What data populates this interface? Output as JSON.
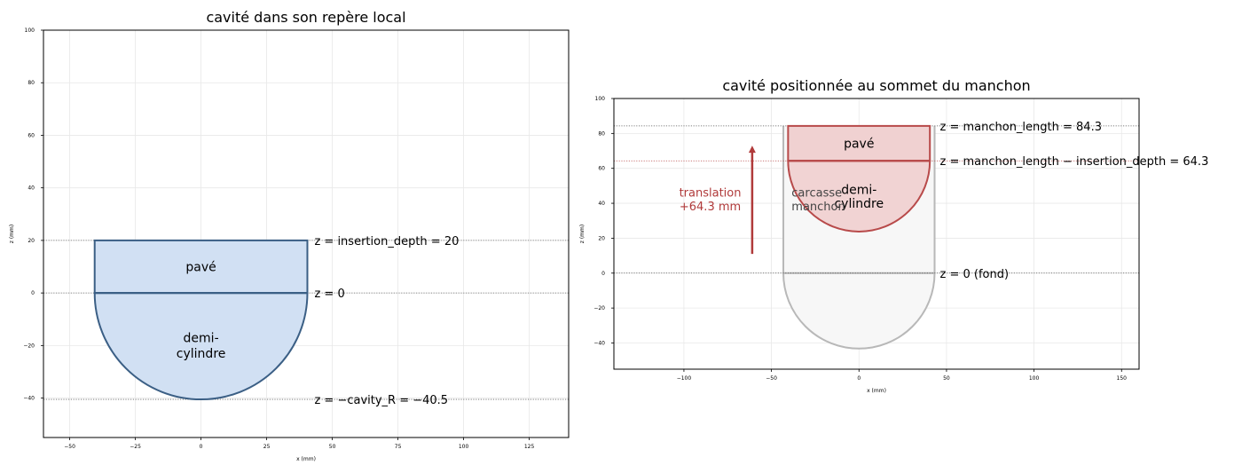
{
  "left": {
    "title": "cavité dans son repère local",
    "xlabel": "x (mm)",
    "ylabel": "z (mm)",
    "xlim": [
      -60,
      140
    ],
    "ylim": [
      -55,
      100
    ],
    "xticks": [
      -50,
      -25,
      0,
      25,
      50,
      75,
      100,
      125
    ],
    "yticks": [
      -40,
      -20,
      0,
      20,
      40,
      60,
      80,
      100
    ],
    "cavity": {
      "R": 40.5,
      "insertion_depth": 20,
      "fill": "#d1e0f3",
      "stroke": "#3b5f85"
    },
    "labels": {
      "pave": "pavé",
      "demi_1": "demi-",
      "demi_2": "cylindre"
    },
    "hlines": [
      {
        "z": 20,
        "text": "z = insertion_depth = 20"
      },
      {
        "z": 0,
        "text": "z = 0"
      },
      {
        "z": -40.5,
        "text": "z = −cavity_R = −40.5"
      }
    ]
  },
  "right": {
    "title": "cavité positionnée au sommet du manchon",
    "xlabel": "x (mm)",
    "ylabel": "z (mm)",
    "xlim": [
      -140,
      160
    ],
    "ylim": [
      -55,
      100
    ],
    "xticks": [
      -100,
      -50,
      0,
      50,
      100,
      150
    ],
    "yticks": [
      -40,
      -20,
      0,
      20,
      40,
      60,
      80,
      100
    ],
    "manchon": {
      "R": 43.2,
      "length": 84.3,
      "fill": "#f7f7f7",
      "stroke": "#b8b8b8"
    },
    "cavity": {
      "R": 40.5,
      "top": 84.3,
      "insertion_top": 64.3,
      "fill": "#f0d1d1",
      "stroke": "#b84a4a"
    },
    "labels": {
      "pave": "pavé",
      "demi_1": "demi-",
      "demi_2": "cylindre",
      "carcasse_1": "carcasse",
      "carcasse_2": "manchon"
    },
    "translation": {
      "line1": "translation",
      "line2": "+64.3 mm",
      "color": "#b03a3a",
      "from": 11,
      "to": 73,
      "x": -61
    },
    "hlines": [
      {
        "z": 84.3,
        "text": "z = manchon_length = 84.3",
        "color": "#555555"
      },
      {
        "z": 64.3,
        "text": "z = manchon_length − insertion_depth = 64.3",
        "color": "#b84a4a"
      },
      {
        "z": 0,
        "text": "z = 0 (fond)",
        "color": "#555555"
      }
    ]
  }
}
